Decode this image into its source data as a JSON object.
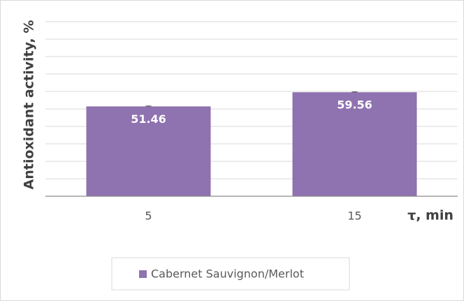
{
  "chart_data": {
    "type": "bar",
    "y_label": "Antioxidant activity, %",
    "x_label": "τ, min",
    "categories": [
      "5",
      "15"
    ],
    "series": [
      {
        "name": "Cabernet Sauvignon/Merlot",
        "color": "#8f72b0",
        "values": [
          51.46,
          59.56
        ],
        "errors": [
          0.2,
          0.2
        ]
      }
    ],
    "ylim": [
      0,
      100
    ],
    "yticks": [
      0,
      10,
      20,
      30,
      40,
      50,
      60,
      70,
      80,
      90,
      100
    ],
    "grid": true,
    "legend": "bottom"
  }
}
